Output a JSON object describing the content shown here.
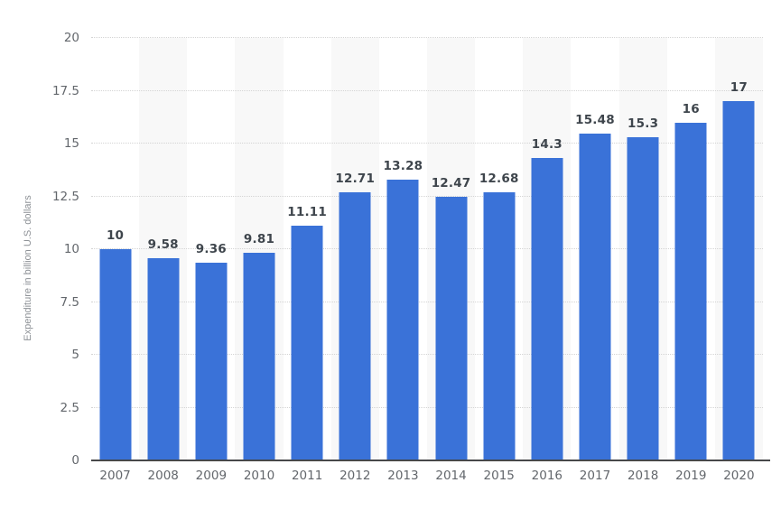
{
  "chart_data": {
    "type": "bar",
    "title": "",
    "xlabel": "",
    "ylabel": "Expenditure in billion U.S. dollars",
    "categories": [
      "2007",
      "2008",
      "2009",
      "2010",
      "2011",
      "2012",
      "2013",
      "2014",
      "2015",
      "2016",
      "2017",
      "2018",
      "2019",
      "2020"
    ],
    "values": [
      10,
      9.58,
      9.36,
      9.81,
      11.11,
      12.71,
      13.28,
      12.47,
      12.68,
      14.3,
      15.48,
      15.3,
      16,
      17
    ],
    "value_labels": [
      "10",
      "9.58",
      "9.36",
      "9.81",
      "11.11",
      "12.71",
      "13.28",
      "12.47",
      "12.68",
      "14.3",
      "15.48",
      "15.3",
      "16",
      "17"
    ],
    "ylim": [
      0,
      20
    ],
    "yticks": [
      0,
      2.5,
      5,
      7.5,
      10,
      12.5,
      15,
      17.5,
      20
    ],
    "ytick_labels": [
      "0",
      "2.5",
      "5",
      "7.5",
      "10",
      "12.5",
      "15",
      "17.5",
      "20"
    ],
    "grid": "horizontal dotted lines at each y tick, drawn behind bars",
    "legend": "none",
    "plot_background": "alternating vertical column stripes (even years shaded)",
    "colors": {
      "bar": "#3a72d8",
      "stripe": "#f8f8f8",
      "gridline": "#d4d4d4",
      "axis_line": "#47484a",
      "tick_label": "#63676c",
      "value_label": "#3e454c",
      "axis_title": "#8d9196",
      "background": "#ffffff"
    }
  }
}
